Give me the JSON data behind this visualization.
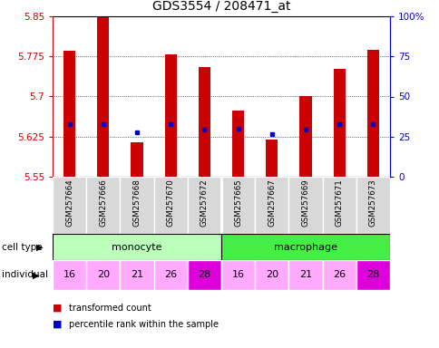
{
  "title": "GDS3554 / 208471_at",
  "samples": [
    "GSM257664",
    "GSM257666",
    "GSM257668",
    "GSM257670",
    "GSM257672",
    "GSM257665",
    "GSM257667",
    "GSM257669",
    "GSM257671",
    "GSM257673"
  ],
  "bar_values": [
    5.785,
    5.848,
    5.615,
    5.778,
    5.755,
    5.673,
    5.62,
    5.7,
    5.752,
    5.787
  ],
  "percentile_values": [
    5.648,
    5.648,
    5.633,
    5.648,
    5.638,
    5.64,
    5.63,
    5.638,
    5.648,
    5.648
  ],
  "ymin": 5.55,
  "ymax": 5.85,
  "yticks": [
    5.55,
    5.625,
    5.7,
    5.775,
    5.85
  ],
  "ytick_labels": [
    "5.55",
    "5.625",
    "5.7",
    "5.775",
    "5.85"
  ],
  "right_yticks": [
    0,
    25,
    50,
    75,
    100
  ],
  "right_ytick_labels": [
    "0",
    "25",
    "50",
    "75",
    "100%"
  ],
  "bar_color": "#cc0000",
  "percentile_color": "#0000cc",
  "individuals": [
    "16",
    "20",
    "21",
    "26",
    "28",
    "16",
    "20",
    "21",
    "26",
    "28"
  ],
  "ind_normal_color": "#ffaaff",
  "ind_highlight_color": "#dd00dd",
  "legend_red_label": "transformed count",
  "legend_blue_label": "percentile rank within the sample",
  "cell_type_label": "cell type",
  "individual_label": "individual",
  "monocyte_color": "#bbffbb",
  "macrophage_color": "#44ee44",
  "sample_label_bg": "#d8d8d8"
}
